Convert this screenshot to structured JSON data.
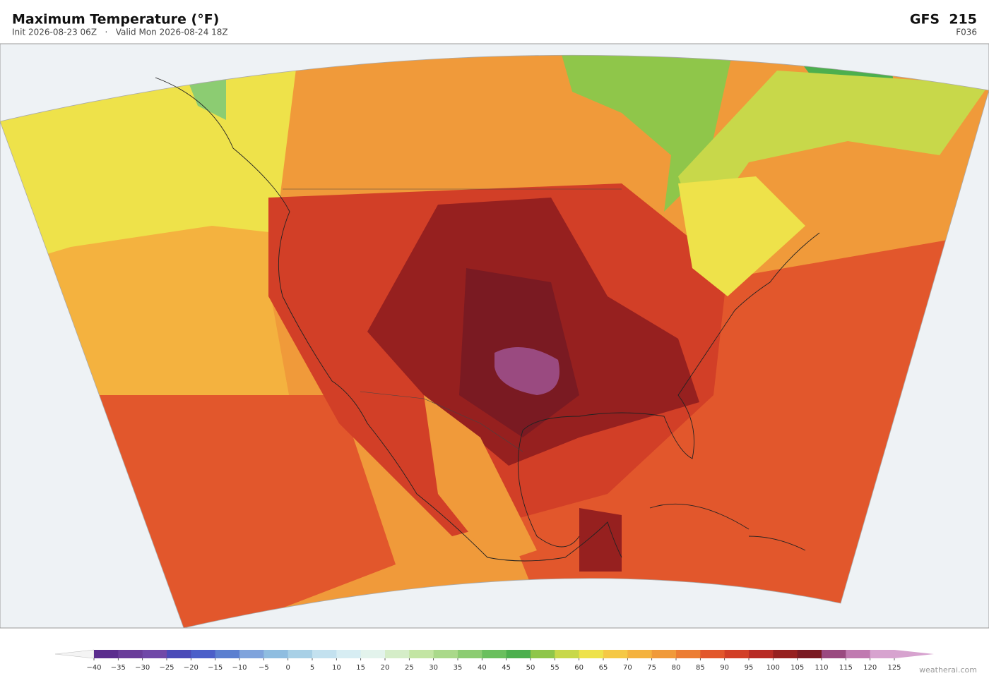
{
  "header": {
    "title": "Maximum Temperature  (°F)",
    "subtitle": "Init 2026-08-23 06Z   ·   Valid Mon 2026-08-24 18Z",
    "model": "GFS  215",
    "forecast_hour": "F036"
  },
  "colorbar": {
    "ticks": [
      {
        "value": -40,
        "label": "−40"
      },
      {
        "value": -35,
        "label": "−35"
      },
      {
        "value": -30,
        "label": "−30"
      },
      {
        "value": -25,
        "label": "−25"
      },
      {
        "value": -20,
        "label": "−20"
      },
      {
        "value": -15,
        "label": "−15"
      },
      {
        "value": -10,
        "label": "−10"
      },
      {
        "value": -5,
        "label": "−5"
      },
      0,
      5,
      10,
      15,
      20,
      25,
      30,
      35,
      40,
      45,
      50,
      55,
      60,
      65,
      70,
      75,
      80,
      85,
      90,
      95,
      100,
      105,
      110,
      115,
      120,
      125
    ],
    "colors": [
      "#5b2d8e",
      "#6a3d9a",
      "#7048a8",
      "#4a4ab8",
      "#4b5fc9",
      "#5b7fd0",
      "#7fa3dc",
      "#8fbde0",
      "#a8d0e6",
      "#c3e1ef",
      "#d7edf3",
      "#e3f3ec",
      "#d5edc8",
      "#c3e5a3",
      "#aad98a",
      "#8ccc72",
      "#6abf5e",
      "#4caf4e",
      "#8fc64a",
      "#c8d84a",
      "#eee24a",
      "#f5c845",
      "#f4b23f",
      "#f09a3a",
      "#ec7d33",
      "#e2572c",
      "#d23f27",
      "#b82b24",
      "#96201f",
      "#7a1a22",
      "#9a4a80",
      "#c07ab0",
      "#d7a3cf"
    ],
    "under_color": "#f4f4f4",
    "over_color": "#d7a3cf"
  },
  "watermark": "weatherai.com"
}
